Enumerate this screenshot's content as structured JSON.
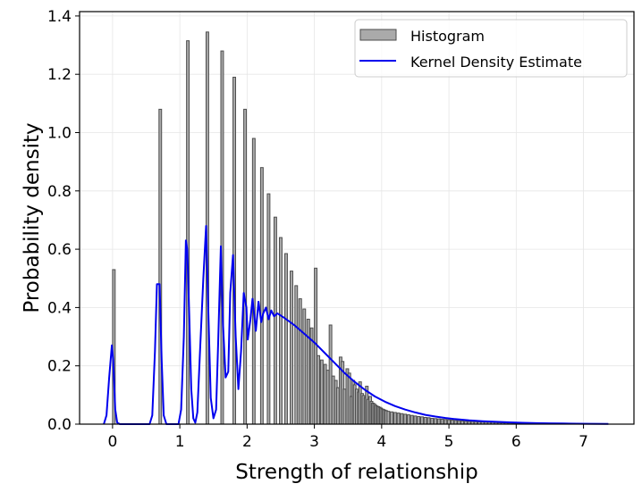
{
  "chart_data": {
    "type": "bar",
    "title": "",
    "xlabel": "Strength of relationship",
    "ylabel": "Probability density",
    "xlim": [
      -0.49,
      7.75
    ],
    "ylim": [
      0,
      1.415
    ],
    "xticks": [
      0,
      1,
      2,
      3,
      4,
      5,
      6,
      7
    ],
    "xtick_labels": [
      "0",
      "1",
      "2",
      "3",
      "4",
      "5",
      "6",
      "7"
    ],
    "yticks": [
      0.0,
      0.2,
      0.4,
      0.6,
      0.8,
      1.0,
      1.2,
      1.4
    ],
    "ytick_labels": [
      "0.0",
      "0.2",
      "0.4",
      "0.6",
      "0.8",
      "1.0",
      "1.2",
      "1.4"
    ],
    "grid": true,
    "legend": {
      "placement": "top-right",
      "entries": [
        {
          "label": "Histogram",
          "kind": "patch",
          "color": "#aaaaaa",
          "edge": "#4d4d4d"
        },
        {
          "label": "Kernel Density Estimate",
          "kind": "line",
          "color": "#0000ee"
        }
      ]
    },
    "bin_width": 0.05,
    "series": [
      {
        "name": "Histogram",
        "type": "bar",
        "color": "#aaaaaa",
        "edgecolor": "#4d4d4d",
        "x": [
          0.0,
          0.69,
          1.1,
          1.39,
          1.61,
          1.79,
          1.95,
          2.08,
          2.2,
          2.3,
          2.4,
          2.48,
          2.56,
          2.64,
          2.71,
          2.77,
          2.83,
          2.89,
          2.94,
          3.0,
          3.04,
          3.09,
          3.14,
          3.18,
          3.22,
          3.26,
          3.3,
          3.33,
          3.37,
          3.4,
          3.43,
          3.47,
          3.5,
          3.53,
          3.56,
          3.58,
          3.61,
          3.64,
          3.66,
          3.69,
          3.71,
          3.74,
          3.76,
          3.78,
          3.81,
          3.83,
          3.85,
          3.87,
          3.89,
          3.91,
          3.93,
          3.95,
          3.97,
          3.99,
          4.01,
          4.03,
          4.05,
          4.08,
          4.13,
          4.18,
          4.23,
          4.28,
          4.33,
          4.38,
          4.43,
          4.48,
          4.53,
          4.58,
          4.63,
          4.68,
          4.73,
          4.78,
          4.83,
          4.88,
          4.93,
          4.98,
          5.03,
          5.08,
          5.13,
          5.18,
          5.23,
          5.28,
          5.33,
          5.38,
          5.43,
          5.48,
          5.53,
          5.58,
          5.63,
          5.68,
          5.73,
          5.78,
          5.83,
          5.88,
          5.93,
          5.98,
          6.03,
          6.08,
          6.13,
          6.18,
          6.23,
          6.28
        ],
        "values": [
          0.53,
          1.08,
          1.315,
          1.345,
          1.28,
          1.19,
          1.08,
          0.98,
          0.88,
          0.79,
          0.71,
          0.64,
          0.585,
          0.525,
          0.475,
          0.43,
          0.395,
          0.36,
          0.33,
          0.535,
          0.235,
          0.22,
          0.205,
          0.185,
          0.34,
          0.165,
          0.15,
          0.125,
          0.23,
          0.215,
          0.12,
          0.19,
          0.175,
          0.095,
          0.15,
          0.135,
          0.12,
          0.11,
          0.145,
          0.105,
          0.098,
          0.09,
          0.13,
          0.085,
          0.095,
          0.078,
          0.072,
          0.07,
          0.065,
          0.062,
          0.06,
          0.058,
          0.055,
          0.052,
          0.05,
          0.048,
          0.046,
          0.044,
          0.042,
          0.04,
          0.038,
          0.036,
          0.034,
          0.032,
          0.03,
          0.028,
          0.026,
          0.025,
          0.023,
          0.022,
          0.02,
          0.019,
          0.018,
          0.017,
          0.016,
          0.015,
          0.014,
          0.013,
          0.012,
          0.011,
          0.01,
          0.0095,
          0.009,
          0.0085,
          0.008,
          0.0075,
          0.007,
          0.0065,
          0.006,
          0.0055,
          0.005,
          0.0045,
          0.004,
          0.0035,
          0.003,
          0.0028,
          0.0025,
          0.0022,
          0.002,
          0.0018,
          0.0015,
          0.0012
        ]
      },
      {
        "name": "Kernel Density Estimate",
        "type": "line",
        "color": "#0000ee",
        "x": [
          -0.13,
          -0.09,
          -0.05,
          -0.01,
          0.01,
          0.04,
          0.07,
          0.11,
          0.2,
          0.4,
          0.55,
          0.59,
          0.63,
          0.66,
          0.7,
          0.73,
          0.76,
          0.8,
          0.9,
          0.98,
          1.02,
          1.06,
          1.09,
          1.11,
          1.14,
          1.17,
          1.2,
          1.23,
          1.26,
          1.3,
          1.35,
          1.39,
          1.42,
          1.46,
          1.5,
          1.54,
          1.57,
          1.61,
          1.64,
          1.68,
          1.72,
          1.75,
          1.79,
          1.83,
          1.87,
          1.91,
          1.95,
          1.99,
          2.01,
          2.05,
          2.08,
          2.13,
          2.17,
          2.21,
          2.24,
          2.28,
          2.32,
          2.36,
          2.4,
          2.45,
          2.55,
          2.7,
          2.85,
          3.0,
          3.15,
          3.3,
          3.45,
          3.6,
          3.75,
          3.9,
          4.05,
          4.2,
          4.35,
          4.5,
          4.65,
          4.8,
          4.95,
          5.1,
          5.3,
          5.5,
          5.7,
          5.9,
          6.1,
          6.3,
          6.5,
          6.7,
          6.9,
          7.1,
          7.37
        ],
        "values": [
          0.0,
          0.03,
          0.16,
          0.27,
          0.22,
          0.05,
          0.005,
          0.0,
          0.0,
          0.0,
          0.0,
          0.03,
          0.25,
          0.48,
          0.48,
          0.22,
          0.03,
          0.0,
          0.0,
          0.0,
          0.05,
          0.3,
          0.63,
          0.6,
          0.38,
          0.12,
          0.02,
          0.005,
          0.04,
          0.25,
          0.5,
          0.68,
          0.42,
          0.09,
          0.02,
          0.05,
          0.28,
          0.61,
          0.35,
          0.16,
          0.18,
          0.45,
          0.58,
          0.3,
          0.12,
          0.25,
          0.45,
          0.4,
          0.29,
          0.36,
          0.43,
          0.32,
          0.42,
          0.35,
          0.38,
          0.4,
          0.36,
          0.39,
          0.37,
          0.38,
          0.365,
          0.34,
          0.31,
          0.28,
          0.245,
          0.21,
          0.175,
          0.145,
          0.118,
          0.095,
          0.077,
          0.062,
          0.05,
          0.04,
          0.032,
          0.026,
          0.021,
          0.017,
          0.013,
          0.01,
          0.008,
          0.006,
          0.0045,
          0.0035,
          0.0027,
          0.002,
          0.0016,
          0.0012,
          0.001
        ]
      }
    ]
  }
}
